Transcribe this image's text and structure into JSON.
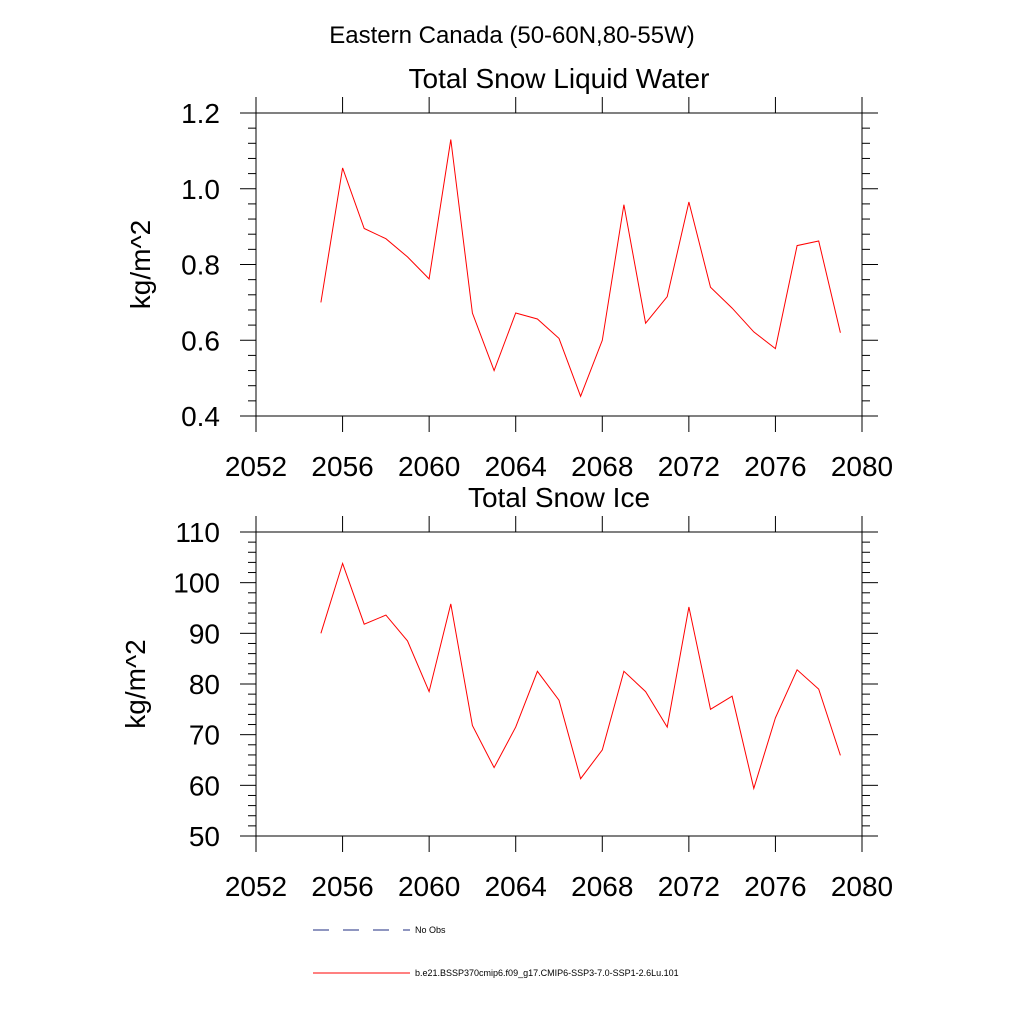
{
  "figure": {
    "title": "Eastern Canada (50-60N,80-55W)"
  },
  "chart_data": [
    {
      "type": "line",
      "title": "Total Snow Liquid Water",
      "xlabel": "",
      "ylabel": "kg/m^2",
      "xlim": [
        2052,
        2080
      ],
      "ylim": [
        0.4,
        1.2
      ],
      "xticks": [
        2052,
        2056,
        2060,
        2064,
        2068,
        2072,
        2076,
        2080
      ],
      "yticks": [
        0.4,
        0.6,
        0.8,
        1.0,
        1.2
      ],
      "ytick_labels": [
        "0.4",
        "0.6",
        "0.8",
        "1.0",
        "1.2"
      ],
      "grid": false,
      "series": [
        {
          "name": "b.e21.BSSP370cmip6.f09_g17.CMIP6-SSP3-7.0-SSP1-2.6Lu.101",
          "color": "#ff0000",
          "x": [
            2055,
            2056,
            2057,
            2058,
            2059,
            2060,
            2061,
            2062,
            2063,
            2064,
            2065,
            2066,
            2067,
            2068,
            2069,
            2070,
            2071,
            2072,
            2073,
            2074,
            2075,
            2076,
            2077,
            2078,
            2079
          ],
          "values": [
            0.7,
            1.055,
            0.895,
            0.868,
            0.82,
            0.762,
            1.13,
            0.672,
            0.52,
            0.672,
            0.656,
            0.605,
            0.452,
            0.6,
            0.958,
            0.645,
            0.715,
            0.965,
            0.74,
            0.685,
            0.622,
            0.578,
            0.85,
            0.862,
            0.62
          ]
        }
      ]
    },
    {
      "type": "line",
      "title": "Total Snow Ice",
      "xlabel": "",
      "ylabel": "kg/m^2",
      "xlim": [
        2052,
        2080
      ],
      "ylim": [
        50,
        110
      ],
      "xticks": [
        2052,
        2056,
        2060,
        2064,
        2068,
        2072,
        2076,
        2080
      ],
      "yticks": [
        50,
        60,
        70,
        80,
        90,
        100,
        110
      ],
      "ytick_labels": [
        "50",
        "60",
        "70",
        "80",
        "90",
        "100",
        "110"
      ],
      "grid": false,
      "series": [
        {
          "name": "b.e21.BSSP370cmip6.f09_g17.CMIP6-SSP3-7.0-SSP1-2.6Lu.101",
          "color": "#ff0000",
          "x": [
            2055,
            2056,
            2057,
            2058,
            2059,
            2060,
            2061,
            2062,
            2063,
            2064,
            2065,
            2066,
            2067,
            2068,
            2069,
            2070,
            2071,
            2072,
            2073,
            2074,
            2075,
            2076,
            2077,
            2078,
            2079
          ],
          "values": [
            90.0,
            103.8,
            91.8,
            93.6,
            88.5,
            78.5,
            95.8,
            71.8,
            63.5,
            71.5,
            82.5,
            76.8,
            61.3,
            67.0,
            82.5,
            78.5,
            71.5,
            95.2,
            75.0,
            77.6,
            59.4,
            73.3,
            82.8,
            79.0,
            65.9
          ]
        }
      ]
    }
  ],
  "legend": {
    "placement": "bottom",
    "items": [
      {
        "label": "No Obs",
        "color": "#1f2e80",
        "style": "dashed"
      },
      {
        "label": "b.e21.BSSP370cmip6.f09_g17.CMIP6-SSP3-7.0-SSP1-2.6Lu.101",
        "color": "#ff0000",
        "style": "solid"
      }
    ]
  }
}
